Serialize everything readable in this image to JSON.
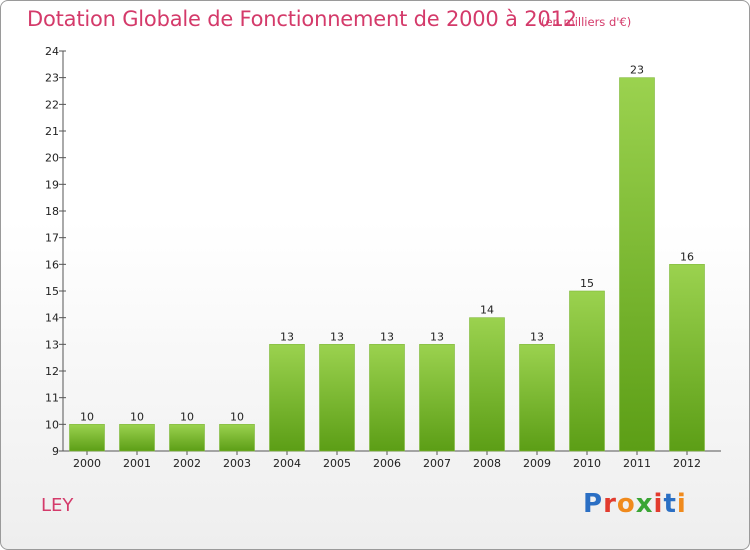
{
  "title": "Dotation Globale de Fonctionnement de 2000 à 2012",
  "unit": "(en milliers d'€)",
  "commune": "LEY",
  "logo": {
    "text": "Proxiti",
    "letter_colors": [
      "#2b6fc4",
      "#e23b2e",
      "#f08a1c",
      "#3aa535",
      "#e23b2e",
      "#2b6fc4",
      "#f08a1c"
    ]
  },
  "colors": {
    "bar_light": "#9bd24f",
    "bar_dark": "#5c9e16",
    "title": "#d43a6a"
  },
  "chart_data": {
    "type": "bar",
    "title": "Dotation Globale de Fonctionnement de 2000 à 2012",
    "subtitle": "(en milliers d'€)",
    "xlabel": "",
    "ylabel": "",
    "categories": [
      "2000",
      "2001",
      "2002",
      "2003",
      "2004",
      "2005",
      "2006",
      "2007",
      "2008",
      "2009",
      "2010",
      "2011",
      "2012"
    ],
    "values": [
      10,
      10,
      10,
      10,
      13,
      13,
      13,
      13,
      14,
      13,
      15,
      23,
      16
    ],
    "ylim": [
      9,
      24
    ],
    "yticks": [
      9,
      10,
      11,
      12,
      13,
      14,
      15,
      16,
      17,
      18,
      19,
      20,
      21,
      22,
      23,
      24
    ],
    "grid": false,
    "legend": "none"
  }
}
